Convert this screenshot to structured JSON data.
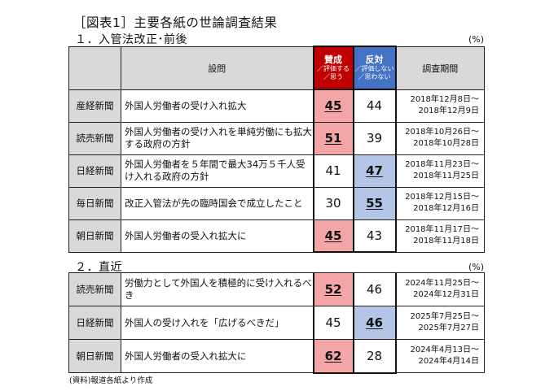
{
  "figure_title": "［図表1］主要各紙の世論調査結果",
  "unit": "(%)",
  "source": "(資料)報道各紙より作成",
  "headers": {
    "question": "設問",
    "agree_main": "賛成",
    "agree_sub": "／評価する／思う",
    "oppose_main": "反対",
    "oppose_sub": "／評価しない／思わない",
    "period": "調査期間"
  },
  "colors": {
    "agree": "#c00000",
    "oppose": "#4472c4",
    "agree_highlight": "#f4a6a6",
    "oppose_highlight": "#b4c6e7",
    "header_bg": "#d9d9d9"
  },
  "section1": {
    "title": "１．入管法改正･前後",
    "rows": [
      {
        "paper": "産経新聞",
        "question": "外国人労働者の受け入れ拡大",
        "agree": "45",
        "oppose": "44",
        "winner": "agree",
        "period_start": "2018年12月8日～",
        "period_end": "2018年12月9日"
      },
      {
        "paper": "読売新聞",
        "question": "外国人労働者の受け入れを単純労働にも拡大する政府の方針",
        "agree": "51",
        "oppose": "39",
        "winner": "agree",
        "period_start": "2018年10月26日～",
        "period_end": "2018年10月28日"
      },
      {
        "paper": "日経新聞",
        "question": "外国人労働者を５年間で最大34万５千人受け入れる政府の方針",
        "agree": "41",
        "oppose": "47",
        "winner": "oppose",
        "period_start": "2018年11月23日～",
        "period_end": "2018年11月25日"
      },
      {
        "paper": "毎日新聞",
        "question": "改正入管法が先の臨時国会で成立したこと",
        "agree": "30",
        "oppose": "55",
        "winner": "oppose",
        "period_start": "2018年12月15日～",
        "period_end": "2018年12月16日"
      },
      {
        "paper": "朝日新聞",
        "question": "外国人労働者の受入れ拡大に",
        "agree": "45",
        "oppose": "43",
        "winner": "agree",
        "period_start": "2018年11月17日～",
        "period_end": "2018年11月18日"
      }
    ]
  },
  "section2": {
    "title": "２．直近",
    "rows": [
      {
        "paper": "読売新聞",
        "question": "労働力として外国人を積極的に受け入れるべき",
        "agree": "52",
        "oppose": "46",
        "winner": "agree",
        "period_start": "2024年11月25日～",
        "period_end": "2024年12月31日"
      },
      {
        "paper": "日経新聞",
        "question": "外国人の受け入れを「広げるべきだ」",
        "agree": "45",
        "oppose": "46",
        "winner": "oppose",
        "period_start": "2025年7月25日～",
        "period_end": "2025年7月27日"
      },
      {
        "paper": "朝日新聞",
        "question": "外国人労働者の受入れ拡大に",
        "agree": "62",
        "oppose": "28",
        "winner": "agree",
        "period_start": "2024年4月13日～",
        "period_end": "2024年4月14日"
      }
    ]
  }
}
